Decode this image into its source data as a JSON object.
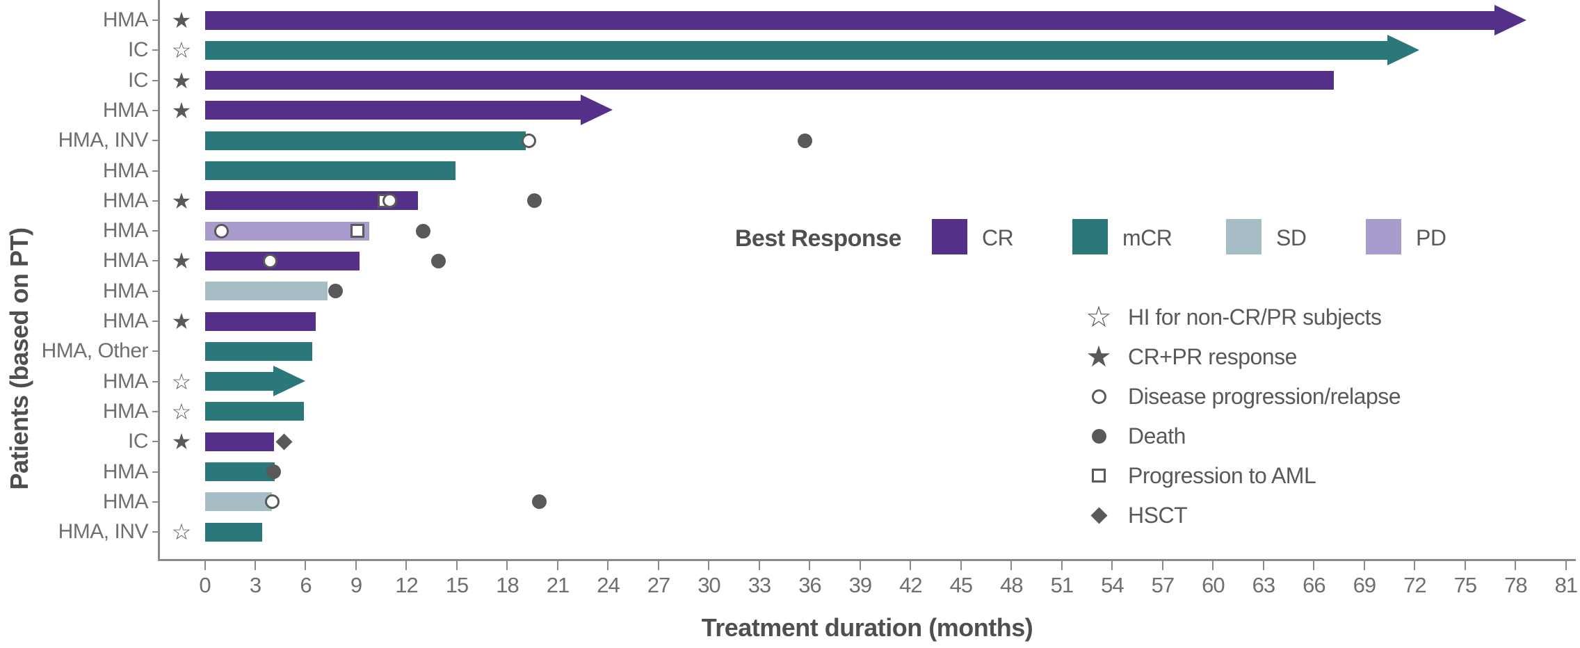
{
  "chart_data": {
    "type": "bar",
    "variant": "swimmer-plot",
    "xlabel": "Treatment duration (months)",
    "ylabel": "Patients (based on PT)",
    "xlim": [
      0,
      81
    ],
    "x_tick_step": 3,
    "x_ticks": [
      0,
      3,
      6,
      9,
      12,
      15,
      18,
      21,
      24,
      27,
      30,
      33,
      36,
      39,
      42,
      45,
      48,
      51,
      54,
      57,
      60,
      63,
      66,
      69,
      72,
      75,
      78,
      81
    ],
    "grid": false,
    "legend_position": "inside-right",
    "colors": {
      "CR": "#553089",
      "mCR": "#2a7879",
      "SD": "#a7bdc5",
      "PD": "#a99ccc",
      "marker": "#595959",
      "axis": "#8a8a8a",
      "tick_text": "#6f6f6f",
      "title_text": "#4f4f4f"
    },
    "response_legend": {
      "title": "Best Response",
      "items": [
        {
          "label": "CR",
          "color_key": "CR"
        },
        {
          "label": "mCR",
          "color_key": "mCR"
        },
        {
          "label": "SD",
          "color_key": "SD"
        },
        {
          "label": "PD",
          "color_key": "PD"
        }
      ]
    },
    "symbol_legend": {
      "items": [
        {
          "symbol": "open-star",
          "glyph": "☆",
          "label": "HI for non-CR/PR subjects"
        },
        {
          "symbol": "filled-star",
          "glyph": "★",
          "label": "CR+PR response"
        },
        {
          "symbol": "open-circle",
          "glyph": null,
          "label": "Disease progression/relapse"
        },
        {
          "symbol": "filled-circle",
          "glyph": null,
          "label": "Death"
        },
        {
          "symbol": "open-square",
          "glyph": null,
          "label": "Progression to AML"
        },
        {
          "symbol": "filled-diamond",
          "glyph": null,
          "label": "HSCT"
        }
      ]
    },
    "patients": [
      {
        "label": "HMA",
        "prefix_marker": "filled-star",
        "response": "CR",
        "duration_months": 76.8,
        "ongoing_arrow": true,
        "events": []
      },
      {
        "label": "IC",
        "prefix_marker": "open-star",
        "response": "mCR",
        "duration_months": 70.4,
        "ongoing_arrow": true,
        "events": []
      },
      {
        "label": "IC",
        "prefix_marker": "filled-star",
        "response": "CR",
        "duration_months": 67.2,
        "ongoing_arrow": false,
        "events": []
      },
      {
        "label": "HMA",
        "prefix_marker": "filled-star",
        "response": "CR",
        "duration_months": 22.4,
        "ongoing_arrow": true,
        "events": []
      },
      {
        "label": "HMA, INV",
        "prefix_marker": null,
        "response": "mCR",
        "duration_months": 19.1,
        "ongoing_arrow": false,
        "events": [
          {
            "type": "open-circle",
            "month": 19.3
          },
          {
            "type": "filled-circle",
            "month": 35.7
          }
        ]
      },
      {
        "label": "HMA",
        "prefix_marker": null,
        "response": "mCR",
        "duration_months": 14.9,
        "ongoing_arrow": false,
        "events": []
      },
      {
        "label": "HMA",
        "prefix_marker": "filled-star",
        "response": "CR",
        "duration_months": 12.7,
        "ongoing_arrow": false,
        "events": [
          {
            "type": "open-square",
            "month": 10.7
          },
          {
            "type": "open-circle",
            "month": 11.0
          },
          {
            "type": "filled-circle",
            "month": 19.6
          }
        ]
      },
      {
        "label": "HMA",
        "prefix_marker": null,
        "response": "PD",
        "duration_months": 9.8,
        "ongoing_arrow": false,
        "events": [
          {
            "type": "open-circle",
            "month": 1.0
          },
          {
            "type": "open-square",
            "month": 9.1
          },
          {
            "type": "filled-circle",
            "month": 13.0
          }
        ]
      },
      {
        "label": "HMA",
        "prefix_marker": "filled-star",
        "response": "CR",
        "duration_months": 9.2,
        "ongoing_arrow": false,
        "events": [
          {
            "type": "open-circle",
            "month": 3.9
          },
          {
            "type": "filled-circle",
            "month": 13.9
          }
        ]
      },
      {
        "label": "HMA",
        "prefix_marker": null,
        "response": "SD",
        "duration_months": 7.3,
        "ongoing_arrow": false,
        "events": [
          {
            "type": "filled-circle",
            "month": 7.8
          }
        ]
      },
      {
        "label": "HMA",
        "prefix_marker": "filled-star",
        "response": "CR",
        "duration_months": 6.6,
        "ongoing_arrow": false,
        "events": []
      },
      {
        "label": "HMA, Other",
        "prefix_marker": null,
        "response": "mCR",
        "duration_months": 6.4,
        "ongoing_arrow": false,
        "events": []
      },
      {
        "label": "HMA",
        "prefix_marker": "open-star",
        "response": "mCR",
        "duration_months": 4.1,
        "ongoing_arrow": true,
        "events": []
      },
      {
        "label": "HMA",
        "prefix_marker": "open-star",
        "response": "mCR",
        "duration_months": 5.9,
        "ongoing_arrow": false,
        "events": []
      },
      {
        "label": "IC",
        "prefix_marker": "filled-star",
        "response": "CR",
        "duration_months": 4.1,
        "ongoing_arrow": false,
        "events": [
          {
            "type": "filled-diamond",
            "month": 4.7
          }
        ]
      },
      {
        "label": "HMA",
        "prefix_marker": null,
        "response": "mCR",
        "duration_months": 4.15,
        "ongoing_arrow": false,
        "events": [
          {
            "type": "filled-circle",
            "month": 4.1
          }
        ]
      },
      {
        "label": "HMA",
        "prefix_marker": null,
        "response": "SD",
        "duration_months": 4.0,
        "ongoing_arrow": false,
        "events": [
          {
            "type": "open-circle",
            "month": 4.0
          },
          {
            "type": "filled-circle",
            "month": 19.9
          }
        ]
      },
      {
        "label": "HMA, INV",
        "prefix_marker": "open-star",
        "response": "mCR",
        "duration_months": 3.4,
        "ongoing_arrow": false,
        "events": []
      }
    ]
  }
}
